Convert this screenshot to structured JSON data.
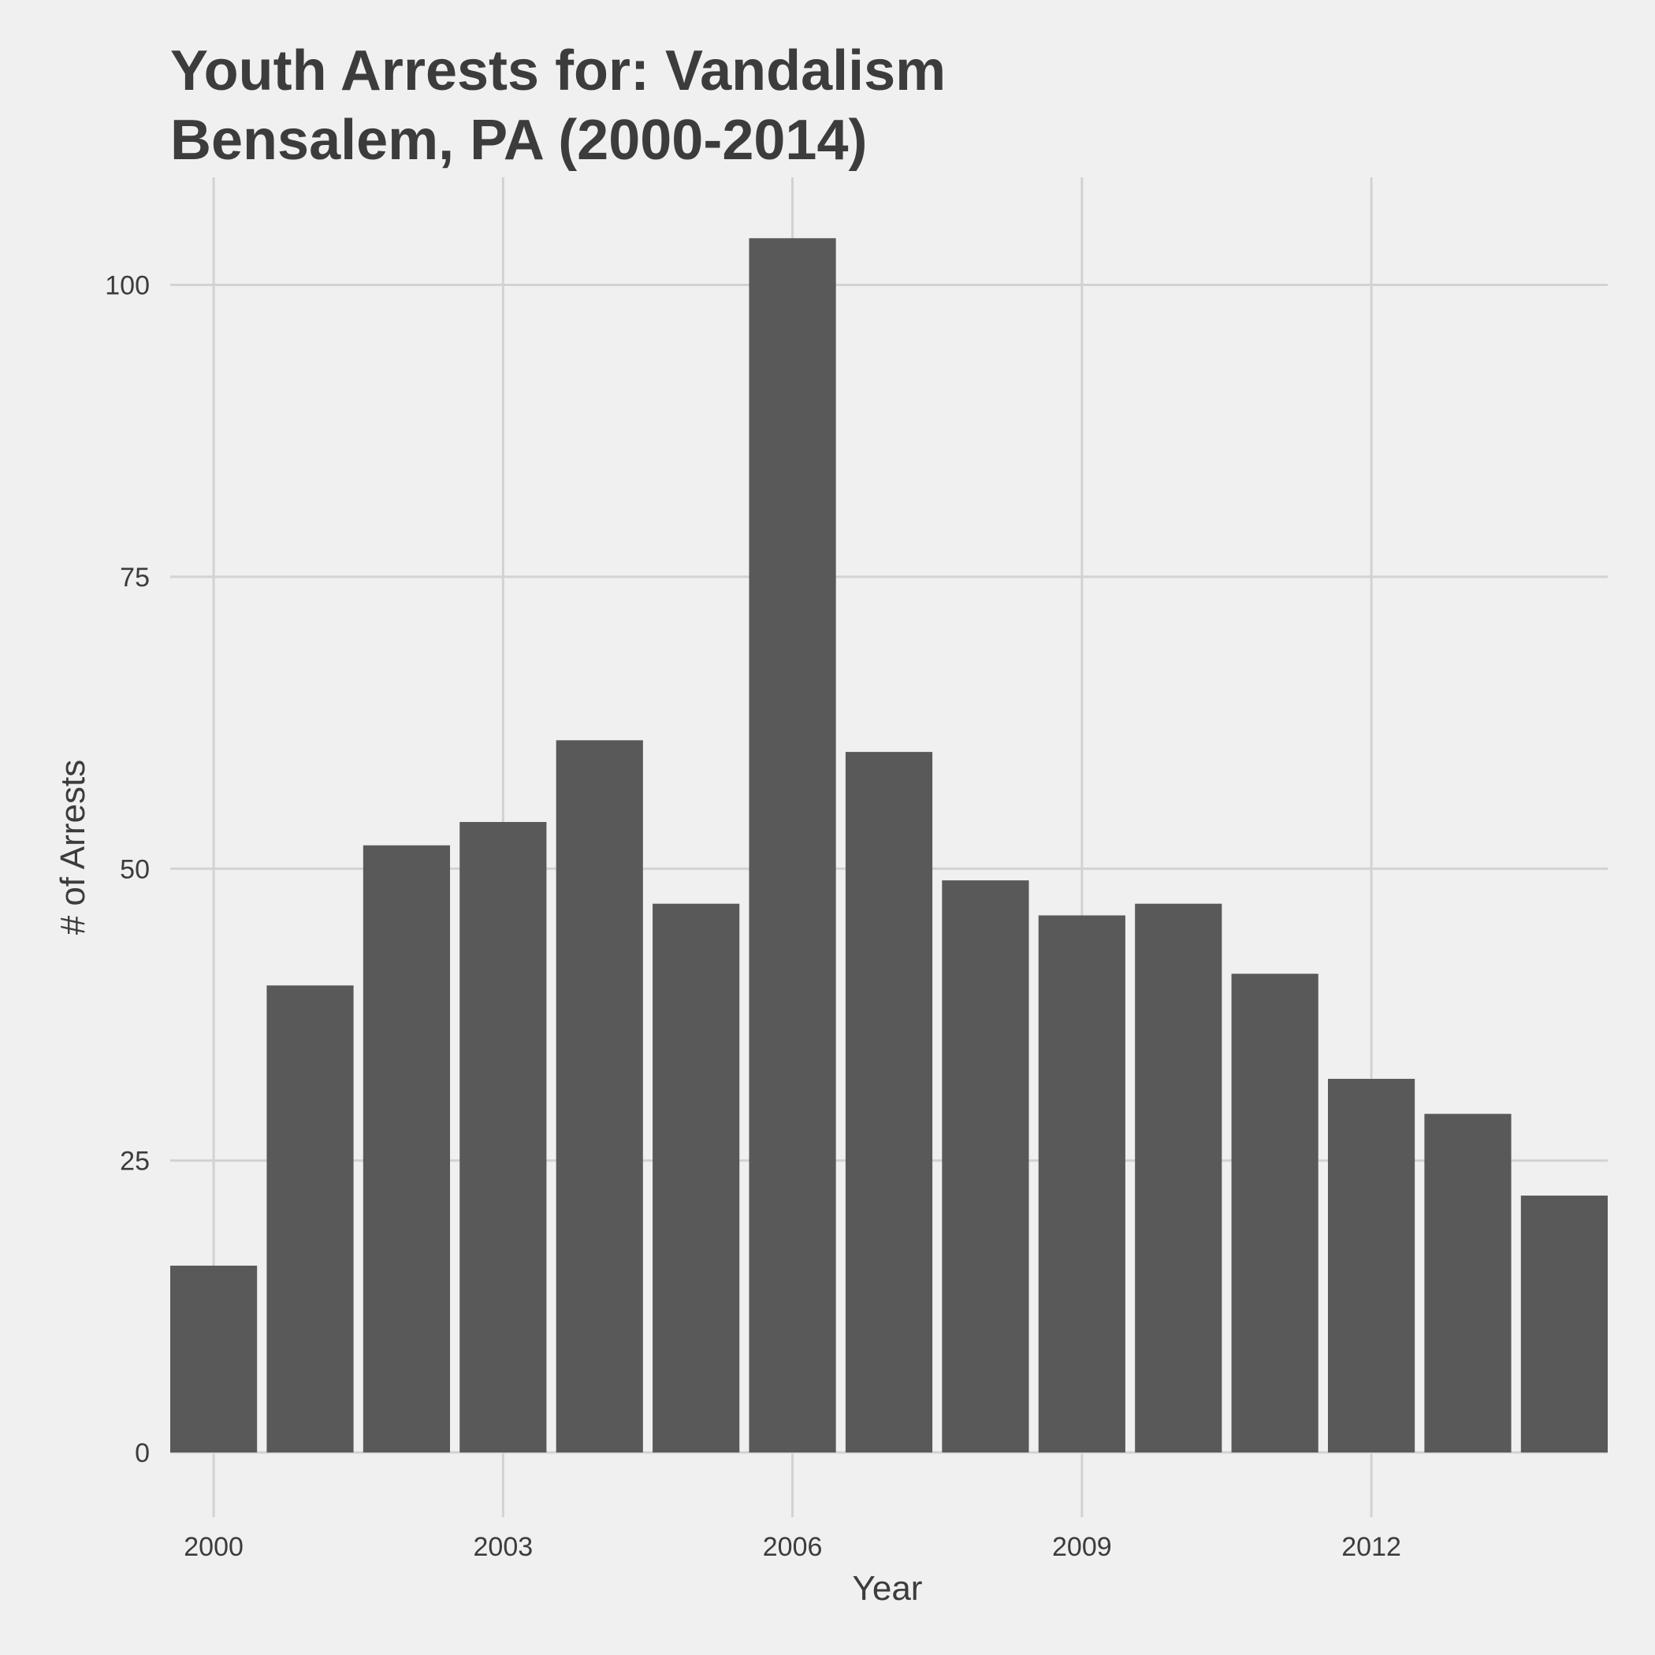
{
  "chart_data": {
    "type": "bar",
    "title": [
      "Youth Arrests for: Vandalism",
      "Bensalem, PA (2000-2014)"
    ],
    "xlabel": "Year",
    "ylabel": "# of Arrests",
    "categories": [
      2000,
      2001,
      2002,
      2003,
      2004,
      2005,
      2006,
      2007,
      2008,
      2009,
      2010,
      2011,
      2012,
      2013,
      2014
    ],
    "values": [
      16,
      40,
      52,
      54,
      61,
      47,
      104,
      60,
      49,
      46,
      47,
      41,
      32,
      29,
      22
    ],
    "x_ticks": [
      "2000",
      "2003",
      "2006",
      "2009",
      "2012"
    ],
    "y_ticks": [
      "0",
      "25",
      "50",
      "75",
      "100"
    ],
    "ylim": [
      0,
      109
    ],
    "grid": true,
    "colors": {
      "background": "#f0f0f0",
      "bar": "#595959",
      "grid": "#d2d2d2",
      "text": "#3c3c3c"
    }
  }
}
